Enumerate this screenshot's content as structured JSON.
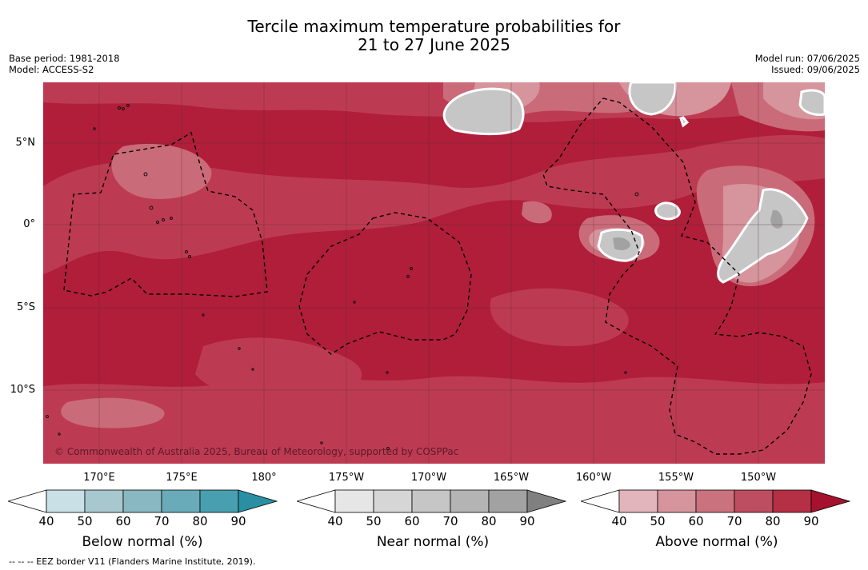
{
  "title_line1": "Tercile maximum temperature probabilities for",
  "title_line2": "21 to 27 June 2025",
  "meta_left": [
    "Base period: 1981-2018",
    "Model: ACCESS-S2"
  ],
  "meta_right": [
    "Model run: 07/06/2025",
    "Issued: 09/06/2025"
  ],
  "lat_labels": [
    "5°N",
    "0°",
    "5°S",
    "10°S"
  ],
  "lon_labels": [
    "170°E",
    "175°E",
    "180°",
    "175°W",
    "170°W",
    "165°W",
    "160°W",
    "155°W",
    "150°W"
  ],
  "copyright": "© Commonwealth of Australia 2025, Bureau of Meteorology, supported by COSPPac",
  "colorbars": [
    {
      "label": "Below normal (%)",
      "ticks": [
        "40",
        "50",
        "60",
        "70",
        "80",
        "90"
      ],
      "colors": [
        "#ffffff",
        "#c8e0e6",
        "#a7c8cf",
        "#89b7c2",
        "#6aabba",
        "#479fb0",
        "#2b8fa4"
      ]
    },
    {
      "label": "Near normal (%)",
      "ticks": [
        "40",
        "50",
        "60",
        "70",
        "80",
        "90"
      ],
      "colors": [
        "#ffffff",
        "#e6e6e6",
        "#d6d6d6",
        "#c6c6c6",
        "#b4b4b4",
        "#a2a2a2",
        "#808080"
      ]
    },
    {
      "label": "Above normal (%)",
      "ticks": [
        "40",
        "50",
        "60",
        "70",
        "80",
        "90"
      ],
      "colors": [
        "#ffffff",
        "#e2b4bb",
        "#d6949d",
        "#ca727e",
        "#bd4d60",
        "#b52f45",
        "#a5122e"
      ]
    }
  ],
  "footnote": "--  --  -- EEZ border V11 (Flanders Marine Institute, 2019)."
}
